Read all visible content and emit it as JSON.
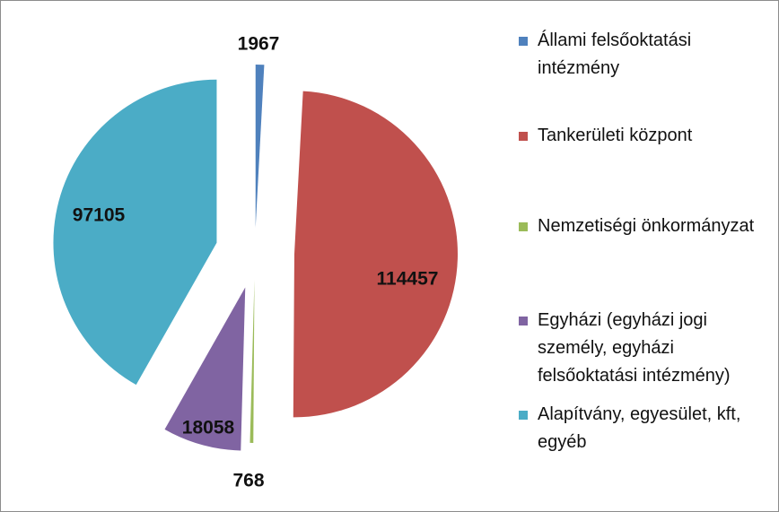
{
  "chart_data": {
    "type": "pie",
    "exploded": true,
    "slices": [
      {
        "label": "Állami felsőoktatási intézmény",
        "value": 1967,
        "value_label": "1967",
        "color": "#4f81bd"
      },
      {
        "label": "Tankerületi központ",
        "value": 114457,
        "value_label": "114457",
        "color": "#c0504d"
      },
      {
        "label": "Nemzetiségi önkormányzat",
        "value": 768,
        "value_label": "768",
        "color": "#9bbb59"
      },
      {
        "label": "Egyházi (egyházi jogi személy, egyházi felsőoktatási intézmény)",
        "value": 18058,
        "value_label": "18058",
        "color": "#8064a2"
      },
      {
        "label": "Alapítvány, egyesület, kft, egyéb",
        "value": 97105,
        "value_label": "97105",
        "color": "#4bacc6"
      }
    ],
    "legend_position": "right"
  }
}
